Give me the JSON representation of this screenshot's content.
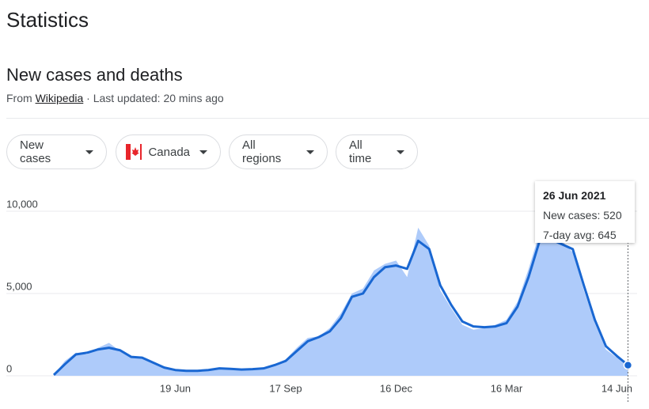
{
  "header": {
    "title": "Statistics",
    "subtitle": "New cases and deaths",
    "source_prefix": "From",
    "source_link": "Wikipedia",
    "updated": "· Last updated: 20 mins ago"
  },
  "filters": [
    "New cases",
    "Canada",
    "All regions",
    "All time"
  ],
  "tooltip": {
    "date": "26 Jun 2021",
    "cases_label": "New cases:",
    "cases": 520,
    "avg_label": "7-day avg:",
    "avg": 645
  },
  "chart_data": {
    "type": "area-line",
    "categories": [
      null,
      null,
      null,
      null,
      null,
      null,
      null,
      null,
      null,
      null,
      null,
      "19 Jun",
      null,
      null,
      null,
      null,
      null,
      null,
      null,
      null,
      null,
      "17 Sep",
      null,
      null,
      null,
      null,
      null,
      null,
      null,
      null,
      null,
      "16 Dec",
      null,
      null,
      null,
      null,
      null,
      null,
      null,
      null,
      null,
      "16 Mar",
      null,
      null,
      null,
      null,
      null,
      null,
      null,
      null,
      null,
      "14 Jun",
      null
    ],
    "series": [
      {
        "name": "New cases",
        "color": "#aecbfa",
        "values": [
          40,
          900,
          1400,
          1300,
          1700,
          2000,
          1500,
          1200,
          1100,
          750,
          450,
          380,
          280,
          320,
          380,
          480,
          400,
          350,
          420,
          480,
          700,
          1000,
          1700,
          2300,
          2400,
          2900,
          3800,
          5000,
          5300,
          6400,
          6800,
          7000,
          6000,
          9000,
          7900,
          5200,
          4100,
          3100,
          2800,
          2900,
          3100,
          3400,
          4500,
          6500,
          8700,
          8600,
          8200,
          7500,
          5200,
          3200,
          1600,
          1100,
          520
        ]
      },
      {
        "name": "7-day avg",
        "color": "#1967d2",
        "values": [
          50,
          700,
          1300,
          1400,
          1600,
          1700,
          1550,
          1150,
          1100,
          800,
          500,
          350,
          300,
          300,
          350,
          450,
          420,
          380,
          400,
          450,
          650,
          900,
          1500,
          2100,
          2350,
          2700,
          3500,
          4800,
          5000,
          6000,
          6600,
          6700,
          6500,
          8200,
          7700,
          5500,
          4300,
          3300,
          3000,
          2950,
          3000,
          3200,
          4200,
          6000,
          8200,
          8300,
          8000,
          7700,
          5500,
          3400,
          1800,
          1200,
          645
        ]
      }
    ],
    "ylim": [
      0,
      10000
    ],
    "yticks": [
      0,
      {
        "value": 5000,
        "label": "5,000"
      },
      {
        "value": 10000,
        "label": "10,000"
      }
    ],
    "grid": true
  }
}
